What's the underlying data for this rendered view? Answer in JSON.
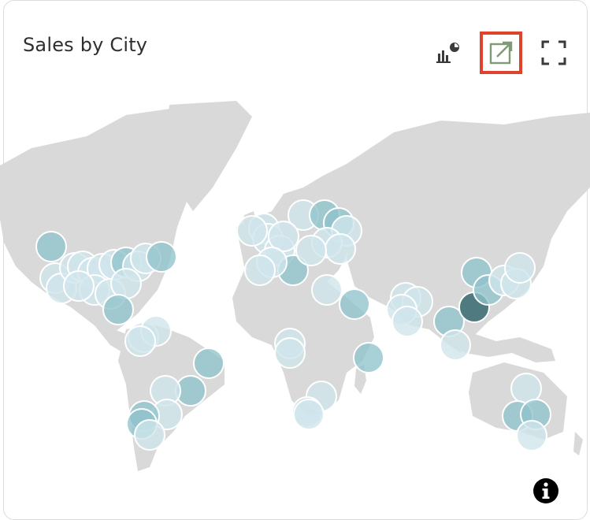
{
  "card": {
    "title": "Sales by City"
  },
  "toolbar": {
    "chart_type_icon": "bar-chart-pie-icon",
    "open_icon": "open-external-icon",
    "fullscreen_icon": "fullscreen-icon",
    "focus_color": "#e0432b"
  },
  "info": {
    "icon": "info-icon"
  },
  "colors": {
    "land": "#d9d9d9",
    "bubble_light": "#cfe6ec",
    "bubble_mid": "#8fc3cc",
    "bubble_dark": "#3f6f75",
    "bubble_stroke": "#ffffff"
  }
}
